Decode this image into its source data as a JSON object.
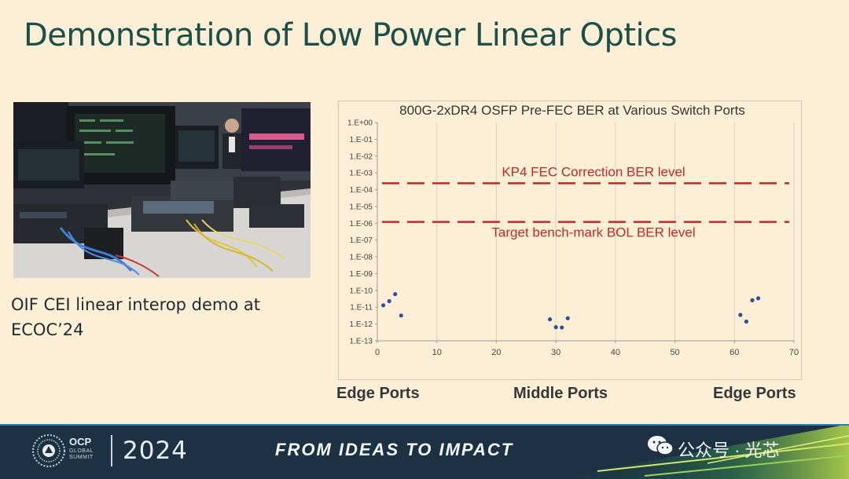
{
  "slide": {
    "title": "Demonstration of Low Power Linear Optics",
    "caption": "OIF CEI linear interop demo at ECOC’24",
    "port_labels": {
      "left": "Edge Ports",
      "middle": "Middle Ports",
      "right": "Edge Ports"
    }
  },
  "footer": {
    "brand": "OCP",
    "brand_sub_1": "GLOBAL",
    "brand_sub_2": "SUMMIT",
    "year": "2024",
    "tagline": "FROM IDEAS TO IMPACT",
    "watermark": "公众号 · 光芯"
  },
  "colors": {
    "title": "#1b4f4a",
    "series": "#2f4f9e",
    "threshold": "#c0282a",
    "footer_bg": "#1c3244",
    "slide_bg": "#fcefd6"
  },
  "chart_data": {
    "type": "scatter",
    "title": "800G-2xDR4 OSFP Pre-FEC BER at Various Switch Ports",
    "xlim": [
      0,
      70
    ],
    "x_ticks": [
      "0",
      "10",
      "20",
      "30",
      "40",
      "50",
      "60",
      "70"
    ],
    "y_scale": "log",
    "ylim": [
      1e-13,
      1
    ],
    "y_ticks": [
      "1.E+00",
      "1.E-01",
      "1.E-02",
      "1.E-03",
      "1.E-04",
      "1.E-05",
      "1.E-06",
      "1.E-07",
      "1.E-08",
      "1.E-09",
      "1.E-10",
      "1.E-11",
      "1.E-12",
      "1.E-13"
    ],
    "grid": "vertical",
    "series": [
      {
        "points": [
          [
            1,
            1.3e-11
          ],
          [
            2,
            2.3e-11
          ],
          [
            3,
            6e-11
          ],
          [
            4,
            3.2e-12
          ],
          [
            29,
            1.9e-12
          ],
          [
            30,
            6.5e-13
          ],
          [
            31,
            6.2e-13
          ],
          [
            32,
            2.2e-12
          ],
          [
            61,
            3.5e-12
          ],
          [
            62,
            1.4e-12
          ],
          [
            63,
            2.6e-11
          ],
          [
            64,
            3.4e-11
          ]
        ]
      }
    ],
    "thresholds": [
      {
        "label": "KP4 FEC Correction BER level",
        "y": 0.00024
      },
      {
        "label": "Target bench-mark BOL BER level",
        "y": 1.2e-06
      }
    ]
  }
}
